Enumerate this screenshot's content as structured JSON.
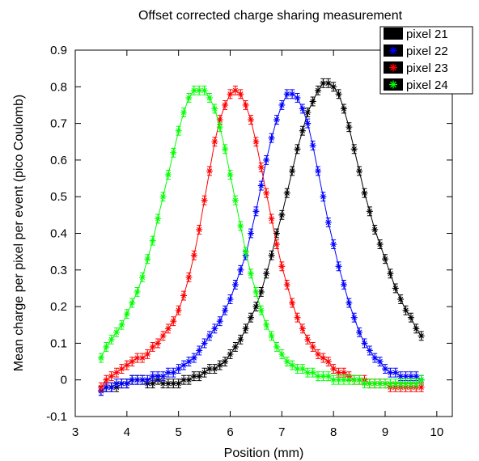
{
  "chart_data": {
    "type": "line",
    "title": "Offset corrected charge sharing measurement",
    "xlabel": "Position (mm)",
    "ylabel": "Mean charge per pixel per event (pico Coulomb)",
    "xlim": [
      3,
      10.3
    ],
    "ylim": [
      -0.1,
      0.9
    ],
    "xticks": [
      "3",
      "4",
      "5",
      "6",
      "7",
      "8",
      "9",
      "10"
    ],
    "yticks": [
      "-0.1",
      "0",
      "0.1",
      "0.2",
      "0.3",
      "0.4",
      "0.5",
      "0.6",
      "0.7",
      "0.8",
      "0.9"
    ],
    "legend_position": "top-right",
    "grid": false,
    "marker": "asterisk",
    "error_bars": true,
    "series": [
      {
        "name": "pixel 21",
        "color": "#000000",
        "x": [
          3.5,
          3.6,
          3.7,
          3.8,
          3.9,
          4.0,
          4.1,
          4.2,
          4.3,
          4.4,
          4.5,
          4.6,
          4.7,
          4.8,
          4.9,
          5.0,
          5.1,
          5.2,
          5.3,
          5.4,
          5.5,
          5.6,
          5.7,
          5.8,
          5.9,
          6.0,
          6.1,
          6.2,
          6.3,
          6.4,
          6.5,
          6.6,
          6.7,
          6.8,
          6.9,
          7.0,
          7.1,
          7.2,
          7.3,
          7.4,
          7.5,
          7.6,
          7.7,
          7.8,
          7.9,
          8.0,
          8.1,
          8.2,
          8.3,
          8.4,
          8.5,
          8.6,
          8.7,
          8.8,
          8.9,
          9.0,
          9.1,
          9.2,
          9.3,
          9.4,
          9.5,
          9.6,
          9.7
        ],
        "y": [
          -0.03,
          -0.02,
          -0.02,
          -0.02,
          -0.01,
          -0.01,
          0.0,
          0.0,
          0.0,
          -0.01,
          -0.01,
          0.0,
          -0.01,
          -0.01,
          -0.01,
          -0.01,
          0.0,
          0.0,
          0.01,
          0.01,
          0.02,
          0.03,
          0.03,
          0.04,
          0.05,
          0.07,
          0.09,
          0.11,
          0.14,
          0.17,
          0.2,
          0.24,
          0.29,
          0.34,
          0.4,
          0.45,
          0.51,
          0.57,
          0.63,
          0.68,
          0.73,
          0.76,
          0.79,
          0.81,
          0.81,
          0.8,
          0.78,
          0.74,
          0.69,
          0.63,
          0.57,
          0.51,
          0.46,
          0.41,
          0.37,
          0.33,
          0.29,
          0.25,
          0.22,
          0.19,
          0.17,
          0.14,
          0.12
        ],
        "yerr": 0.012
      },
      {
        "name": "pixel 22",
        "color": "#0000ff",
        "x": [
          3.5,
          3.6,
          3.7,
          3.8,
          3.9,
          4.0,
          4.1,
          4.2,
          4.3,
          4.4,
          4.5,
          4.6,
          4.7,
          4.8,
          4.9,
          5.0,
          5.1,
          5.2,
          5.3,
          5.4,
          5.5,
          5.6,
          5.7,
          5.8,
          5.9,
          6.0,
          6.1,
          6.2,
          6.3,
          6.4,
          6.5,
          6.6,
          6.7,
          6.8,
          6.9,
          7.0,
          7.1,
          7.2,
          7.3,
          7.4,
          7.5,
          7.6,
          7.7,
          7.8,
          7.9,
          8.0,
          8.1,
          8.2,
          8.3,
          8.4,
          8.5,
          8.6,
          8.7,
          8.8,
          8.9,
          9.0,
          9.1,
          9.2,
          9.3,
          9.4,
          9.5,
          9.6,
          9.7
        ],
        "y": [
          -0.03,
          -0.02,
          -0.02,
          -0.01,
          -0.01,
          -0.01,
          0.0,
          0.0,
          0.0,
          0.0,
          0.01,
          0.01,
          0.01,
          0.02,
          0.02,
          0.03,
          0.04,
          0.05,
          0.06,
          0.08,
          0.1,
          0.12,
          0.14,
          0.16,
          0.19,
          0.22,
          0.26,
          0.3,
          0.34,
          0.4,
          0.46,
          0.53,
          0.6,
          0.66,
          0.71,
          0.75,
          0.78,
          0.78,
          0.77,
          0.74,
          0.7,
          0.64,
          0.57,
          0.5,
          0.43,
          0.37,
          0.31,
          0.26,
          0.21,
          0.17,
          0.13,
          0.1,
          0.08,
          0.06,
          0.05,
          0.03,
          0.02,
          0.02,
          0.01,
          0.01,
          0.01,
          0.01,
          0.0
        ],
        "yerr": 0.012
      },
      {
        "name": "pixel 23",
        "color": "#ff0000",
        "x": [
          3.5,
          3.6,
          3.7,
          3.8,
          3.9,
          4.0,
          4.1,
          4.2,
          4.3,
          4.4,
          4.5,
          4.6,
          4.7,
          4.8,
          4.9,
          5.0,
          5.1,
          5.2,
          5.3,
          5.4,
          5.5,
          5.6,
          5.7,
          5.8,
          5.9,
          6.0,
          6.1,
          6.2,
          6.3,
          6.4,
          6.5,
          6.6,
          6.7,
          6.8,
          6.9,
          7.0,
          7.1,
          7.2,
          7.3,
          7.4,
          7.5,
          7.6,
          7.7,
          7.8,
          7.9,
          8.0,
          8.1,
          8.2,
          8.3,
          8.4,
          8.5,
          8.6,
          8.7,
          8.8,
          8.9,
          9.0,
          9.1,
          9.2,
          9.3,
          9.4,
          9.5,
          9.6,
          9.7
        ],
        "y": [
          -0.02,
          0.0,
          0.01,
          0.02,
          0.03,
          0.04,
          0.05,
          0.06,
          0.06,
          0.07,
          0.09,
          0.1,
          0.12,
          0.14,
          0.16,
          0.19,
          0.23,
          0.28,
          0.34,
          0.41,
          0.49,
          0.57,
          0.65,
          0.71,
          0.75,
          0.78,
          0.79,
          0.78,
          0.75,
          0.71,
          0.65,
          0.58,
          0.51,
          0.44,
          0.37,
          0.31,
          0.26,
          0.21,
          0.17,
          0.14,
          0.11,
          0.09,
          0.07,
          0.06,
          0.05,
          0.03,
          0.02,
          0.02,
          0.01,
          0.0,
          0.0,
          0.0,
          -0.01,
          -0.01,
          -0.01,
          -0.01,
          -0.02,
          -0.02,
          -0.02,
          -0.02,
          -0.02,
          -0.02,
          -0.02
        ],
        "yerr": 0.012
      },
      {
        "name": "pixel 24",
        "color": "#00ff00",
        "x": [
          3.5,
          3.6,
          3.7,
          3.8,
          3.9,
          4.0,
          4.1,
          4.2,
          4.3,
          4.4,
          4.5,
          4.6,
          4.7,
          4.8,
          4.9,
          5.0,
          5.1,
          5.2,
          5.3,
          5.4,
          5.5,
          5.6,
          5.7,
          5.8,
          5.9,
          6.0,
          6.1,
          6.2,
          6.3,
          6.4,
          6.5,
          6.6,
          6.7,
          6.8,
          6.9,
          7.0,
          7.1,
          7.2,
          7.3,
          7.4,
          7.5,
          7.6,
          7.7,
          7.8,
          7.9,
          8.0,
          8.1,
          8.2,
          8.3,
          8.4,
          8.5,
          8.6,
          8.7,
          8.8,
          8.9,
          9.0,
          9.1,
          9.2,
          9.3,
          9.4,
          9.5,
          9.6,
          9.7
        ],
        "y": [
          0.06,
          0.09,
          0.11,
          0.13,
          0.15,
          0.18,
          0.21,
          0.24,
          0.28,
          0.33,
          0.38,
          0.44,
          0.5,
          0.56,
          0.62,
          0.68,
          0.73,
          0.77,
          0.79,
          0.79,
          0.79,
          0.77,
          0.74,
          0.69,
          0.63,
          0.56,
          0.49,
          0.42,
          0.35,
          0.29,
          0.24,
          0.19,
          0.15,
          0.12,
          0.09,
          0.07,
          0.05,
          0.04,
          0.03,
          0.03,
          0.02,
          0.02,
          0.01,
          0.01,
          0.01,
          0.0,
          0.0,
          0.0,
          0.0,
          0.0,
          0.0,
          -0.01,
          -0.01,
          -0.01,
          -0.01,
          -0.01,
          -0.01,
          -0.01,
          -0.01,
          -0.01,
          -0.01,
          -0.01,
          0.0
        ],
        "yerr": 0.012
      }
    ]
  }
}
